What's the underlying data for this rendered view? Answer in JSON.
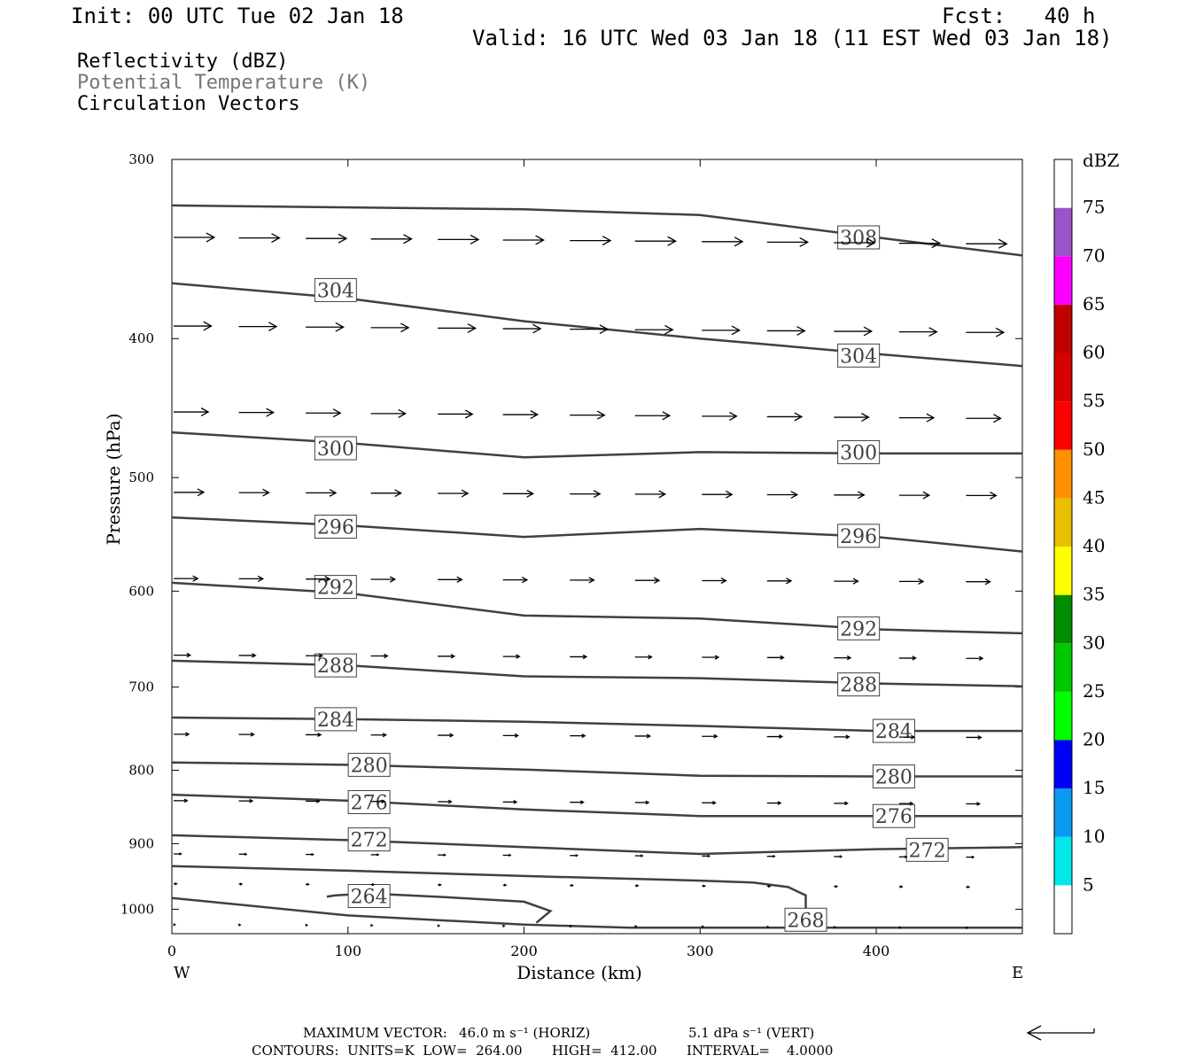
{
  "header": {
    "init": "Init: 00 UTC Tue 02 Jan 18",
    "fcst": "Fcst:   40 h",
    "valid": "Valid: 16 UTC Wed 03 Jan 18 (11 EST Wed 03 Jan 18)"
  },
  "legend_lines": [
    {
      "text": "Reflectivity (dBZ)",
      "color": "#000000"
    },
    {
      "text": "Potential Temperature (K)",
      "color": "#777777"
    },
    {
      "text": "Circulation Vectors",
      "color": "#000000"
    }
  ],
  "footer": {
    "max_vector_label": "MAXIMUM VECTOR:",
    "horiz": "46.0 m s⁻¹ (HORIZ)",
    "vert": "5.1 dPa s⁻¹ (VERT)",
    "contours": "CONTOURS:  UNITS=K  LOW=  264.00       HIGH=  412.00       INTERVAL=    4.0000"
  },
  "colorbar": {
    "title": "dBZ",
    "labels": [
      "5",
      "10",
      "15",
      "20",
      "25",
      "30",
      "35",
      "40",
      "45",
      "50",
      "55",
      "60",
      "65",
      "70",
      "75"
    ],
    "colors": [
      "#ffffff",
      "#00e8e8",
      "#0a9af2",
      "#0000f6",
      "#00ff00",
      "#00c800",
      "#008c00",
      "#ffff00",
      "#e8c000",
      "#ff9000",
      "#ff0000",
      "#d60000",
      "#c00000",
      "#ff00ff",
      "#9955c8",
      "#ffffff"
    ]
  },
  "chart_data": {
    "type": "line",
    "title": "",
    "xlabel": "Distance (km)",
    "ylabel": "Pressure (hPa)",
    "xlim": [
      0,
      483
    ],
    "ylim": [
      1040,
      300
    ],
    "y_scale": "log",
    "x_ticks": [
      0,
      100,
      200,
      300,
      400
    ],
    "y_ticks": [
      300,
      400,
      500,
      600,
      700,
      800,
      900,
      1000
    ],
    "x_end_labels": {
      "left": "W",
      "right": "E"
    },
    "line_color": "#404040",
    "contours": [
      {
        "label": "308",
        "x": [
          0,
          100,
          200,
          300,
          400,
          483
        ],
        "y": [
          323,
          324,
          325,
          328,
          340,
          350
        ],
        "label_at": [
          390,
          340
        ]
      },
      {
        "label": "304",
        "x": [
          0,
          100,
          200,
          300,
          400,
          483
        ],
        "y": [
          366,
          375,
          389,
          400,
          410,
          418
        ],
        "label_at": [
          93,
          370
        ],
        "label2_at": [
          390,
          411
        ]
      },
      {
        "label": "300",
        "x": [
          0,
          100,
          200,
          300,
          400,
          483
        ],
        "y": [
          465,
          473,
          484,
          480,
          481,
          481
        ],
        "label_at": [
          93,
          477
        ],
        "label2_at": [
          390,
          480
        ]
      },
      {
        "label": "296",
        "x": [
          0,
          100,
          200,
          300,
          400,
          483
        ],
        "y": [
          533,
          540,
          550,
          543,
          550,
          563
        ],
        "label_at": [
          93,
          541
        ],
        "label2_at": [
          390,
          549
        ]
      },
      {
        "label": "292",
        "x": [
          0,
          100,
          200,
          300,
          400,
          483
        ],
        "y": [
          592,
          602,
          624,
          627,
          638,
          642
        ],
        "label_at": [
          93,
          596
        ],
        "label2_at": [
          390,
          637
        ]
      },
      {
        "label": "288",
        "x": [
          0,
          100,
          200,
          300,
          400,
          483
        ],
        "y": [
          671,
          676,
          688,
          690,
          696,
          699
        ],
        "label_at": [
          93,
          676
        ],
        "label2_at": [
          390,
          697
        ]
      },
      {
        "label": "284",
        "x": [
          0,
          100,
          200,
          300,
          400,
          483
        ],
        "y": [
          735,
          737,
          740,
          745,
          751,
          751
        ],
        "label_at": [
          93,
          737
        ],
        "label2_at": [
          410,
          751
        ]
      },
      {
        "label": "280",
        "x": [
          0,
          100,
          200,
          300,
          400,
          483
        ],
        "y": [
          790,
          793,
          799,
          807,
          808,
          808
        ],
        "label_at": [
          112,
          793
        ],
        "label2_at": [
          410,
          808
        ]
      },
      {
        "label": "276",
        "x": [
          0,
          100,
          200,
          300,
          400,
          483
        ],
        "y": [
          832,
          840,
          852,
          861,
          861,
          861
        ],
        "label_at": [
          112,
          842
        ],
        "label2_at": [
          410,
          861
        ]
      },
      {
        "label": "272",
        "x": [
          0,
          100,
          200,
          300,
          400,
          483
        ],
        "y": [
          888,
          895,
          905,
          915,
          908,
          905
        ],
        "label_at": [
          112,
          894
        ],
        "label2_at": [
          429,
          909
        ]
      },
      {
        "label": "268",
        "x": [
          0,
          100,
          200,
          300,
          330,
          350,
          360,
          360,
          355
        ],
        "y": [
          933,
          940,
          948,
          955,
          958,
          965,
          978,
          1000,
          1025
        ],
        "label_at": [
          360,
          1017
        ]
      },
      {
        "label": "264",
        "x": [
          0,
          100,
          200,
          260,
          300,
          380,
          483
        ],
        "y": [
          982,
          1010,
          1025,
          1030,
          1030,
          1030,
          1030
        ],
        "label_at": [
          112,
          979
        ],
        "loop": {
          "x": [
            88,
            93,
            112,
            150,
            200,
            215,
            207
          ],
          "y": [
            980,
            978,
            975,
            980,
            988,
            1003,
            1022
          ]
        }
      }
    ],
    "vector_rows": [
      {
        "p": 340,
        "dx": 27
      },
      {
        "p": 392,
        "dx": 25
      },
      {
        "p": 450,
        "dx": 23
      },
      {
        "p": 512,
        "dx": 20
      },
      {
        "p": 588,
        "dx": 16
      },
      {
        "p": 665,
        "dx": 11
      },
      {
        "p": 755,
        "dx": 10
      },
      {
        "p": 840,
        "dx": 9
      },
      {
        "p": 915,
        "dx": 5
      },
      {
        "p": 960,
        "dx": 2
      },
      {
        "p": 1025,
        "dx": 1
      }
    ],
    "vector_columns_km": [
      0,
      37,
      75,
      112,
      150,
      187,
      225,
      262,
      300,
      337,
      375,
      412,
      450
    ],
    "reference_vector": {
      "direction": "west"
    }
  }
}
